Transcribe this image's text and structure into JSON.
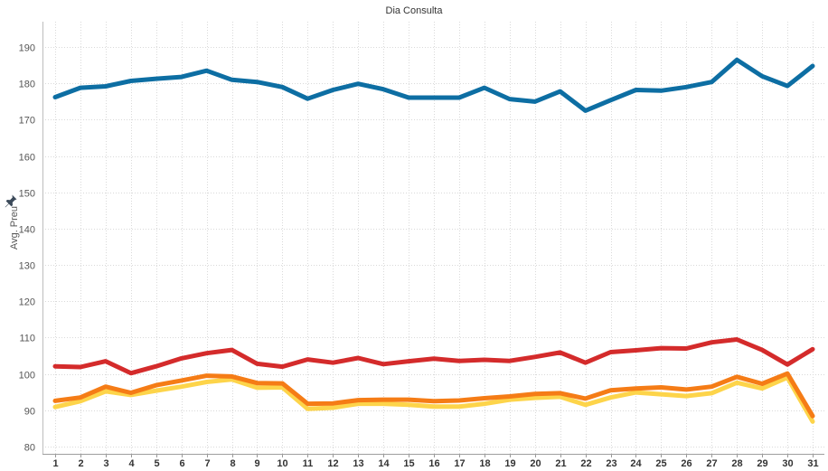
{
  "chart_data": {
    "type": "line",
    "title": "Dia Consulta",
    "ylabel": "Avg. Preu",
    "xlabel": "",
    "ylim": [
      78,
      197
    ],
    "yticks": [
      80,
      90,
      100,
      110,
      120,
      130,
      140,
      150,
      160,
      170,
      180,
      190
    ],
    "grid": true,
    "legend": "none",
    "categories": [
      "1",
      "2",
      "3",
      "4",
      "5",
      "6",
      "7",
      "8",
      "9",
      "10",
      "11",
      "12",
      "13",
      "14",
      "15",
      "16",
      "17",
      "18",
      "19",
      "20",
      "21",
      "22",
      "23",
      "24",
      "25",
      "26",
      "27",
      "28",
      "29",
      "30",
      "31"
    ],
    "series": [
      {
        "color": "#0d6ea3",
        "values": [
          176.2,
          178.8,
          179.2,
          180.7,
          181.3,
          181.8,
          183.5,
          181.0,
          180.4,
          179.0,
          175.8,
          178.2,
          179.9,
          178.4,
          176.1,
          176.1,
          176.1,
          178.8,
          175.7,
          175.0,
          177.8,
          172.5,
          175.4,
          178.2,
          178.0,
          179.0,
          180.4,
          186.5,
          182.0,
          179.3,
          184.8
        ]
      },
      {
        "color": "#d42b2b",
        "values": [
          102.1,
          101.9,
          103.5,
          100.2,
          102.1,
          104.3,
          105.7,
          106.6,
          102.8,
          102.0,
          104.0,
          103.1,
          104.4,
          102.7,
          103.5,
          104.2,
          103.6,
          103.9,
          103.6,
          104.7,
          105.9,
          103.1,
          106.0,
          106.5,
          107.1,
          107.0,
          108.7,
          109.5,
          106.6,
          102.6,
          106.8
        ]
      },
      {
        "color": "#fdd44a",
        "values": [
          90.9,
          92.5,
          95.2,
          94.2,
          95.4,
          96.5,
          97.8,
          98.5,
          96.2,
          96.3,
          90.4,
          90.7,
          91.8,
          91.8,
          91.5,
          91.0,
          91.0,
          91.8,
          92.9,
          93.4,
          93.7,
          91.5,
          93.5,
          94.9,
          94.4,
          93.9,
          94.7,
          97.6,
          96.0,
          99.0,
          86.9
        ]
      },
      {
        "color": "#f57c16",
        "values": [
          92.6,
          93.5,
          96.5,
          94.8,
          96.9,
          98.2,
          99.5,
          99.3,
          97.5,
          97.4,
          91.8,
          91.9,
          92.8,
          92.9,
          92.9,
          92.5,
          92.7,
          93.3,
          93.8,
          94.5,
          94.7,
          93.2,
          95.5,
          96.0,
          96.3,
          95.7,
          96.5,
          99.2,
          97.3,
          100.1,
          88.4
        ]
      }
    ]
  }
}
